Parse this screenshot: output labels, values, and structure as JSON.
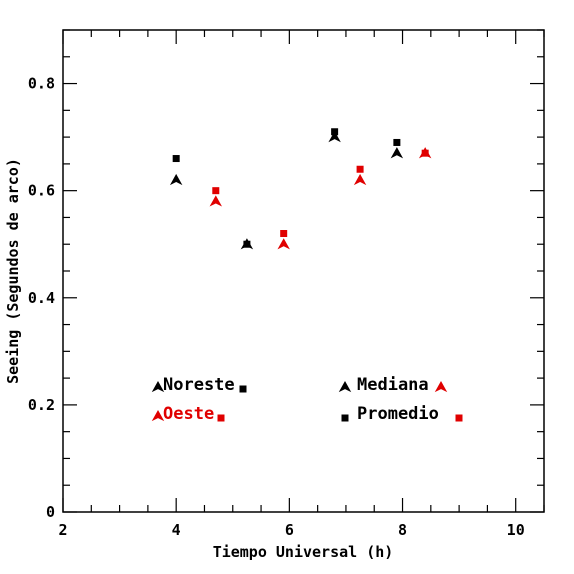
{
  "chart_data": {
    "type": "scatter",
    "xlabel": "Tiempo Universal (h)",
    "ylabel": "Seeing (Segundos de arco)",
    "xlim": [
      2,
      10.5
    ],
    "ylim": [
      0,
      0.9
    ],
    "x_ticks": [
      2,
      4,
      6,
      8,
      10
    ],
    "y_ticks": [
      0,
      0.2,
      0.4,
      0.6,
      0.8
    ],
    "x_tick_labels": [
      "2",
      "4",
      "6",
      "8",
      "10"
    ],
    "y_tick_labels": [
      "0",
      "0.2",
      "0.4",
      "0.6",
      "0.8"
    ],
    "grid": false,
    "colors": {
      "noreste": "#000000",
      "oeste": "#e00000"
    },
    "series": [
      {
        "name": "Noreste Mediana",
        "color": "#000000",
        "marker": "triangle",
        "x": [
          4.0,
          5.25,
          6.8,
          7.9
        ],
        "y": [
          0.62,
          0.5,
          0.7,
          0.67
        ]
      },
      {
        "name": "Noreste Promedio",
        "color": "#000000",
        "marker": "square",
        "x": [
          4.0,
          5.25,
          6.8,
          7.9
        ],
        "y": [
          0.66,
          0.5,
          0.71,
          0.69
        ]
      },
      {
        "name": "Oeste Mediana",
        "color": "#e00000",
        "marker": "triangle",
        "x": [
          4.7,
          5.9,
          7.25,
          8.4
        ],
        "y": [
          0.58,
          0.5,
          0.62,
          0.67
        ]
      },
      {
        "name": "Oeste Promedio",
        "color": "#e00000",
        "marker": "square",
        "x": [
          4.7,
          5.9,
          7.25,
          8.4
        ],
        "y": [
          0.6,
          0.52,
          0.64,
          0.67
        ]
      }
    ],
    "legend": {
      "noreste": "Noreste",
      "oeste": "Oeste",
      "mediana": "Mediana",
      "promedio": "Promedio"
    }
  }
}
